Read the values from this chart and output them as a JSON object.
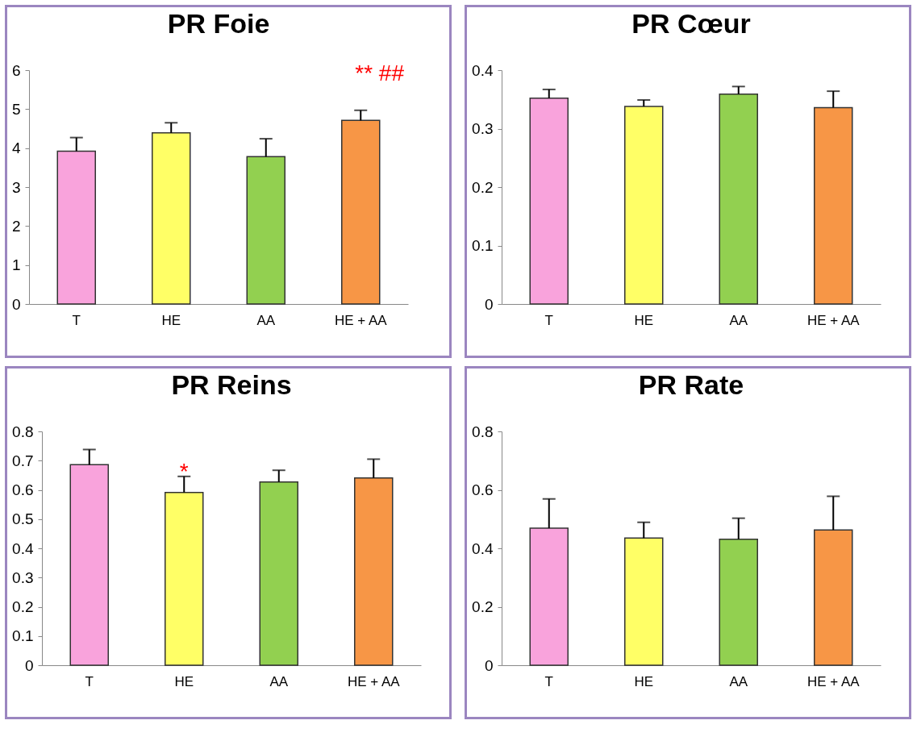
{
  "chart_data": [
    {
      "type": "bar",
      "title": "PR Foie",
      "categories": [
        "T",
        "HE",
        "AA",
        "HE + AA"
      ],
      "values": [
        3.92,
        4.39,
        3.78,
        4.71
      ],
      "errors": [
        0.35,
        0.26,
        0.46,
        0.26
      ],
      "colors": [
        "#f9a3dc",
        "#ffff66",
        "#92d050",
        "#f79646"
      ],
      "ylim": [
        0,
        6
      ],
      "yticks": [
        0,
        1,
        2,
        3,
        4,
        5,
        6
      ],
      "annotations": [
        "**  ##"
      ]
    },
    {
      "type": "bar",
      "title": "PR Cœur",
      "categories": [
        "T",
        "HE",
        "AA",
        "HE + AA"
      ],
      "values": [
        0.352,
        0.338,
        0.359,
        0.336
      ],
      "errors": [
        0.015,
        0.011,
        0.013,
        0.028
      ],
      "colors": [
        "#f9a3dc",
        "#ffff66",
        "#92d050",
        "#f79646"
      ],
      "ylim": [
        0,
        0.4
      ],
      "yticks": [
        0,
        0.1,
        0.2,
        0.3,
        0.4
      ]
    },
    {
      "type": "bar",
      "title": "PR Reins",
      "categories": [
        "T",
        "HE",
        "AA",
        "HE + AA"
      ],
      "values": [
        0.686,
        0.591,
        0.627,
        0.641
      ],
      "errors": [
        0.052,
        0.055,
        0.04,
        0.064
      ],
      "colors": [
        "#f9a3dc",
        "#ffff66",
        "#92d050",
        "#f79646"
      ],
      "ylim": [
        0,
        0.8
      ],
      "yticks": [
        0,
        0.1,
        0.2,
        0.3,
        0.4,
        0.5,
        0.6,
        0.7,
        0.8
      ],
      "annotations": [
        {
          "text": "*",
          "x": "HE",
          "y": 0.66
        }
      ]
    },
    {
      "type": "bar",
      "title": "PR Rate",
      "categories": [
        "T",
        "HE",
        "AA",
        "HE + AA"
      ],
      "values": [
        0.469,
        0.435,
        0.431,
        0.463
      ],
      "errors": [
        0.1,
        0.054,
        0.072,
        0.115
      ],
      "colors": [
        "#f9a3dc",
        "#ffff66",
        "#92d050",
        "#f79646"
      ],
      "ylim": [
        0,
        0.8
      ],
      "yticks": [
        0,
        0.2,
        0.4,
        0.6,
        0.8
      ]
    }
  ]
}
